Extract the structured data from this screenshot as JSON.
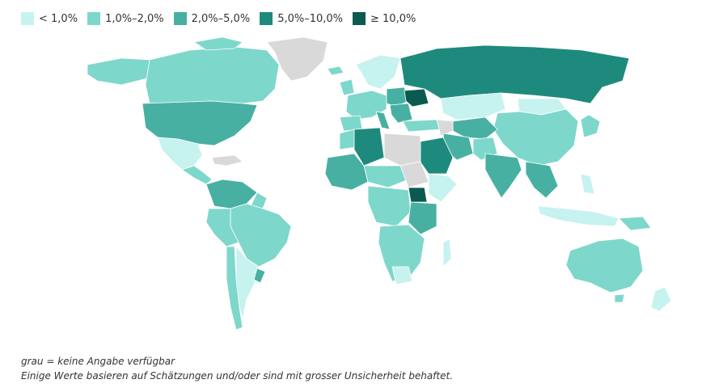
{
  "legend": [
    {
      "label": "< 1,0%",
      "color": "#c6f2ef"
    },
    {
      "label": "1,0%–2,0%",
      "color": "#7ed7cb"
    },
    {
      "label": "2,0%–5,0%",
      "color": "#48b0a2"
    },
    {
      "label": "5,0%–10,0%",
      "color": "#1e8a7d"
    },
    {
      "label": "≥ 10,0%",
      "color": "#0b5a4f"
    }
  ],
  "no_data_color": "#d9d9d9",
  "notes": {
    "line1": "grau = keine Angabe verfügbar",
    "line2": "Einige Werte basieren auf Schätzungen und/oder sind mit grosser Unsicherheit behaftet."
  }
}
